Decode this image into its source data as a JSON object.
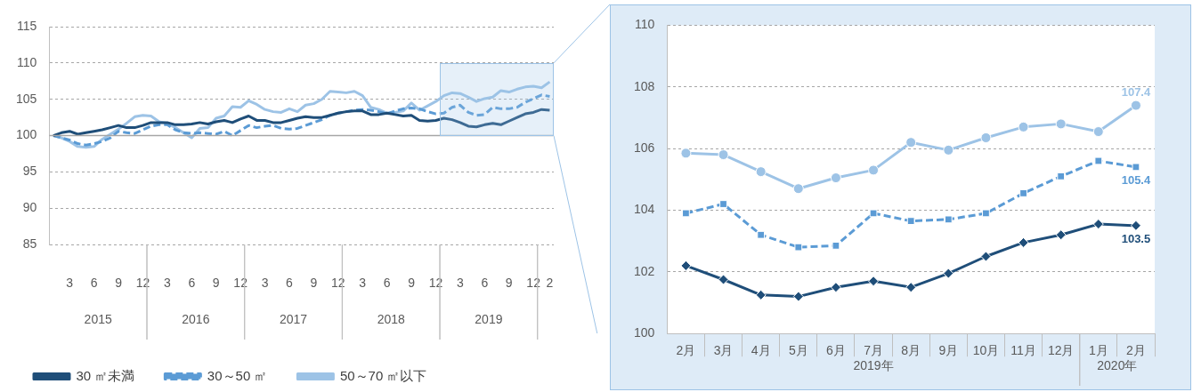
{
  "chart_data": [
    {
      "type": "line",
      "categories": [
        null,
        null,
        "3",
        null,
        null,
        "6",
        null,
        null,
        "9",
        null,
        null,
        "12",
        null,
        null,
        "3",
        null,
        null,
        "6",
        null,
        null,
        "9",
        null,
        null,
        "12",
        null,
        null,
        "3",
        null,
        null,
        "6",
        null,
        null,
        "9",
        null,
        null,
        "12",
        null,
        null,
        "3",
        null,
        null,
        "6",
        null,
        null,
        "9",
        null,
        null,
        "12",
        null,
        null,
        "3",
        null,
        null,
        "6",
        null,
        null,
        "9",
        null,
        null,
        "12",
        null,
        "2"
      ],
      "series": [
        {
          "name": "30 ㎡未満",
          "color": "#1f4e79",
          "line_style": "solid",
          "values": [
            100,
            100.4,
            100.6,
            100.2,
            100.4,
            100.6,
            100.8,
            101.1,
            101.4,
            101.1,
            101.1,
            101.4,
            101.8,
            101.8,
            101.8,
            101.5,
            101.5,
            101.6,
            101.8,
            101.6,
            101.9,
            102.1,
            101.8,
            102.3,
            102.7,
            102.1,
            102.1,
            101.8,
            101.8,
            102.1,
            102.4,
            102.6,
            102.5,
            102.5,
            102.8,
            103.1,
            103.3,
            103.4,
            103.4,
            102.9,
            102.9,
            103.1,
            102.9,
            102.7,
            102.8,
            102.1,
            102.0,
            102.1,
            102.4,
            102.2,
            101.8,
            101.3,
            101.2,
            101.5,
            101.7,
            101.5,
            102.0,
            102.5,
            103.0,
            103.2,
            103.6,
            103.5
          ]
        },
        {
          "name": "30～50 ㎡",
          "color": "#5b9bd5",
          "line_style": "dashed",
          "values": [
            100,
            99.7,
            99.4,
            98.9,
            98.7,
            98.9,
            99.2,
            99.7,
            100.6,
            100.4,
            100.3,
            100.8,
            101.3,
            101.5,
            101.5,
            100.8,
            100.4,
            100.3,
            100.4,
            100.3,
            100.2,
            100.6,
            100.0,
            100.7,
            101.4,
            101.1,
            101.3,
            101.4,
            101.0,
            100.9,
            101.0,
            101.4,
            101.8,
            102.2,
            102.8,
            103.1,
            103.3,
            103.5,
            103.6,
            103.5,
            103.3,
            103.0,
            103.4,
            103.7,
            103.8,
            103.7,
            103.3,
            103.0,
            103.1,
            103.9,
            104.2,
            103.2,
            102.8,
            102.9,
            103.9,
            103.7,
            103.7,
            103.9,
            104.6,
            105.1,
            105.6,
            105.4
          ]
        },
        {
          "name": "50～70 ㎡以下",
          "color": "#9dc3e6",
          "line_style": "solid",
          "values": [
            100,
            99.7,
            99.2,
            98.5,
            98.4,
            98.5,
            99.5,
            100.2,
            100.9,
            101.7,
            102.6,
            102.8,
            102.7,
            101.9,
            101.7,
            101.1,
            100.4,
            99.7,
            101.0,
            101.1,
            102.4,
            102.7,
            104.0,
            103.9,
            104.8,
            104.3,
            103.6,
            103.3,
            103.2,
            103.7,
            103.3,
            104.2,
            104.4,
            105.0,
            106.1,
            106.0,
            105.9,
            106.1,
            105.5,
            103.9,
            103.6,
            103.1,
            103.2,
            103.4,
            104.5,
            103.5,
            104.1,
            104.7,
            105.5,
            105.9,
            105.8,
            105.3,
            104.7,
            105.1,
            105.3,
            106.2,
            106.0,
            106.4,
            106.7,
            106.8,
            106.6,
            107.4
          ]
        }
      ],
      "ylim": [
        85,
        115
      ],
      "yticks": [
        85,
        90,
        95,
        100,
        105,
        110,
        115
      ],
      "grid": "y",
      "legend": "bottom",
      "marker": "none",
      "ref_lines": [
        {
          "axis": "y",
          "value": 100,
          "color": "#a6a6a6"
        }
      ],
      "annotations": [
        "2015",
        "2016",
        "2017",
        "2018",
        "2019"
      ]
    },
    {
      "type": "line",
      "categories": [
        "2月",
        "3月",
        "4月",
        "5月",
        "6月",
        "7月",
        "8月",
        "9月",
        "10月",
        "11月",
        "12月",
        "1月",
        "2月"
      ],
      "series": [
        {
          "color": "#1f4e79",
          "line_style": "solid",
          "marker": "diamond",
          "values": [
            102.2,
            101.75,
            101.25,
            101.2,
            101.5,
            101.7,
            101.5,
            101.95,
            102.5,
            102.95,
            103.2,
            103.55,
            103.5
          ],
          "value_labels": [
            null,
            null,
            null,
            null,
            null,
            null,
            null,
            null,
            null,
            null,
            null,
            null,
            "103.5"
          ]
        },
        {
          "color": "#5b9bd5",
          "line_style": "dashed",
          "marker": "square",
          "values": [
            103.9,
            104.2,
            103.2,
            102.8,
            102.85,
            103.9,
            103.65,
            103.7,
            103.9,
            104.55,
            105.1,
            105.6,
            105.4
          ],
          "value_labels": [
            null,
            null,
            null,
            null,
            null,
            null,
            null,
            null,
            null,
            null,
            null,
            null,
            "105.4"
          ]
        },
        {
          "color": "#9dc3e6",
          "line_style": "solid",
          "marker": "circle",
          "values": [
            105.85,
            105.8,
            105.25,
            104.7,
            105.05,
            105.3,
            106.2,
            105.95,
            106.35,
            106.7,
            106.8,
            106.55,
            107.4
          ],
          "value_labels": [
            null,
            null,
            null,
            null,
            null,
            null,
            null,
            null,
            null,
            null,
            null,
            null,
            "107.4"
          ]
        }
      ],
      "ylim": [
        100,
        110
      ],
      "yticks": [
        100,
        102,
        104,
        106,
        108,
        110
      ],
      "grid": "y",
      "legend": false,
      "annotations": [
        "2019年",
        "2020年"
      ]
    }
  ]
}
